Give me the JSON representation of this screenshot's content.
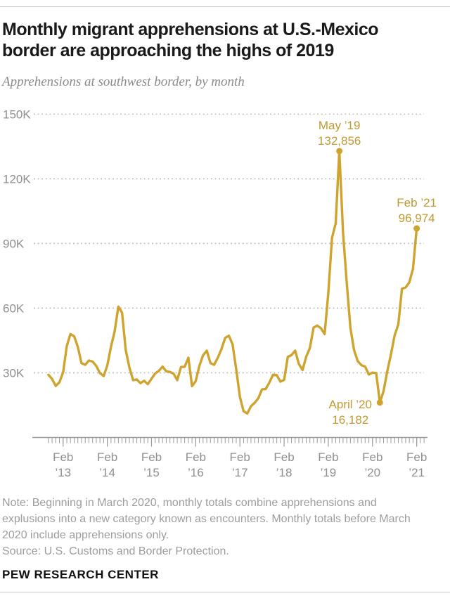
{
  "header": {
    "title_line1": "Monthly migrant apprehensions at U.S.-Mexico",
    "title_line2": "border are approaching the highs of 2019",
    "subtitle": "Apprehensions at southwest border, by month"
  },
  "chart_data": {
    "type": "line",
    "title": "Monthly migrant apprehensions at U.S.-Mexico border are approaching the highs of 2019",
    "subtitle": "Apprehensions at southwest border, by month",
    "unit": "thousands of apprehensions per month",
    "grid": "dotted horizontal",
    "legend": "none",
    "line_color": "#cfa42e",
    "x_axis": {
      "start": "2012-10",
      "end": "2021-02",
      "frequency": "monthly",
      "tick_labels": [
        {
          "month_index": 4,
          "line1": "Feb",
          "line2": "’13"
        },
        {
          "month_index": 16,
          "line1": "Feb",
          "line2": "’14"
        },
        {
          "month_index": 28,
          "line1": "Feb",
          "line2": "’15"
        },
        {
          "month_index": 40,
          "line1": "Feb",
          "line2": "’16"
        },
        {
          "month_index": 52,
          "line1": "Feb",
          "line2": "’17"
        },
        {
          "month_index": 64,
          "line1": "Feb",
          "line2": "’18"
        },
        {
          "month_index": 76,
          "line1": "Feb",
          "line2": "’19"
        },
        {
          "month_index": 88,
          "line1": "Feb",
          "line2": "’20"
        },
        {
          "month_index": 100,
          "line1": "Feb",
          "line2": "’21"
        }
      ]
    },
    "y_axis": {
      "ylim": [
        0,
        155
      ],
      "ticks": [
        {
          "value": 30,
          "label": "30K"
        },
        {
          "value": 60,
          "label": "60K"
        },
        {
          "value": 90,
          "label": "90K"
        },
        {
          "value": 120,
          "label": "120K"
        },
        {
          "value": 150,
          "label": "150K"
        }
      ]
    },
    "values": [
      29.1,
      27.2,
      23.9,
      25.6,
      30.3,
      42.4,
      48.0,
      46.9,
      42.0,
      34.5,
      33.7,
      35.7,
      35.2,
      33.2,
      29.9,
      28.5,
      33.4,
      42.2,
      49.3,
      60.7,
      57.9,
      40.6,
      32.5,
      26.6,
      26.9,
      25.2,
      26.3,
      24.7,
      27.3,
      29.7,
      30.9,
      32.9,
      30.7,
      30.4,
      29.6,
      26.6,
      32.7,
      32.8,
      37.0,
      23.8,
      26.1,
      33.3,
      38.1,
      40.3,
      34.5,
      33.7,
      37.0,
      41.0,
      46.2,
      47.2,
      43.3,
      31.6,
      18.8,
      12.2,
      11.1,
      14.5,
      16.1,
      18.2,
      22.3,
      22.5,
      25.5,
      29.1,
      28.9,
      25.9,
      26.7,
      37.4,
      38.2,
      40.3,
      34.1,
      31.3,
      37.5,
      41.5,
      51.0,
      51.9,
      50.7,
      48.0,
      66.9,
      92.6,
      99.3,
      132.856,
      94.9,
      72.0,
      50.7,
      40.5,
      35.4,
      33.5,
      32.9,
      29.2,
      30.1,
      29.9,
      16.182,
      21.5,
      30.6,
      38.5,
      47.3,
      52.5,
      69.0,
      69.6,
      72.0,
      78.3,
      96.974
    ],
    "callouts": [
      {
        "id": "may-19",
        "label": "May ’19",
        "value_label": "132,856",
        "month": "2019-05",
        "month_index": 79,
        "value": 132.856,
        "placement": "above"
      },
      {
        "id": "april-20",
        "label": "April ’20",
        "value_label": "16,182",
        "month": "2020-04",
        "month_index": 90,
        "value": 16.182,
        "placement": "below-left"
      },
      {
        "id": "feb-21",
        "label": "Feb ’21",
        "value_label": "96,974",
        "month": "2021-02",
        "month_index": 100,
        "value": 96.974,
        "placement": "above"
      }
    ]
  },
  "footer": {
    "note_lines": [
      "Note: Beginning in March 2020, monthly totals combine apprehensions and",
      "explusions into a new category known as encounters. Monthly totals before March",
      "2020 include apprehensions only."
    ],
    "source": "Source: U.S. Customs and Border Protection.",
    "brand": "PEW RESEARCH CENTER"
  },
  "colors": {
    "line": "#cfa42e",
    "callout_text": "#c09a30",
    "grid": "#b7b7b7",
    "axis": "#9a9a9a",
    "axis_label": "#8f8f8f",
    "title": "#1a1a1a",
    "subtitle": "#8a8a8a",
    "note": "#9d9d9d",
    "rule": "#cccccc"
  }
}
